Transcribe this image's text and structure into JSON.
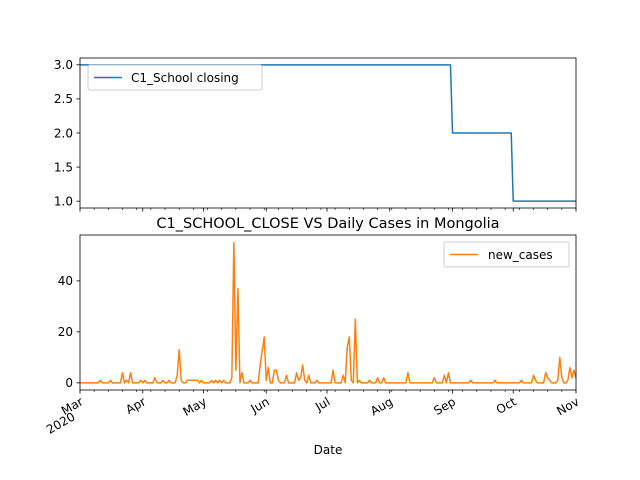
{
  "chart_data": [
    {
      "type": "line",
      "title": "",
      "xlabel": "",
      "ylabel": "",
      "xlim": [
        "2020-03-01",
        "2020-11-01"
      ],
      "ylim": [
        0.9,
        3.1
      ],
      "yticks": [
        "1.0",
        "1.5",
        "2.0",
        "2.5",
        "3.0"
      ],
      "grid": false,
      "legend": {
        "position": "upper-left"
      },
      "series": [
        {
          "name": "C1_School closing",
          "color": "#1f77b4",
          "step": true,
          "points": [
            [
              "2020-03-01",
              3.0
            ],
            [
              "2020-08-31",
              3.0
            ],
            [
              "2020-09-01",
              2.0
            ],
            [
              "2020-09-30",
              2.0
            ],
            [
              "2020-10-01",
              1.0
            ],
            [
              "2020-11-01",
              1.0
            ]
          ]
        }
      ]
    },
    {
      "type": "line",
      "title": "C1_SCHOOL_CLOSE VS Daily Cases in Mongolia",
      "xlabel": "Date",
      "ylabel": "",
      "xlim": [
        "2020-03-01",
        "2020-11-01"
      ],
      "ylim": [
        -2.8,
        58
      ],
      "yticks": [
        "0",
        "20",
        "40"
      ],
      "xticks": [
        {
          "date": "2020-03-01",
          "label": "Mar",
          "sublabel": "2020"
        },
        {
          "date": "2020-04-01",
          "label": "Apr"
        },
        {
          "date": "2020-05-01",
          "label": "May"
        },
        {
          "date": "2020-06-01",
          "label": "Jun"
        },
        {
          "date": "2020-07-01",
          "label": "Jul"
        },
        {
          "date": "2020-08-01",
          "label": "Aug"
        },
        {
          "date": "2020-09-01",
          "label": "Sep"
        },
        {
          "date": "2020-10-01",
          "label": "Oct"
        },
        {
          "date": "2020-11-01",
          "label": "Nov"
        }
      ],
      "grid": false,
      "legend": {
        "position": "upper-right"
      },
      "series": [
        {
          "name": "new_cases",
          "color": "#ff7f0e",
          "points": [
            [
              "2020-03-01",
              0
            ],
            [
              "2020-03-10",
              0
            ],
            [
              "2020-03-11",
              1
            ],
            [
              "2020-03-12",
              0
            ],
            [
              "2020-03-15",
              0
            ],
            [
              "2020-03-16",
              1
            ],
            [
              "2020-03-17",
              0
            ],
            [
              "2020-03-21",
              0
            ],
            [
              "2020-03-22",
              4
            ],
            [
              "2020-03-23",
              0
            ],
            [
              "2020-03-24",
              1
            ],
            [
              "2020-03-25",
              0
            ],
            [
              "2020-03-26",
              4
            ],
            [
              "2020-03-27",
              0
            ],
            [
              "2020-03-30",
              0
            ],
            [
              "2020-03-31",
              1
            ],
            [
              "2020-04-01",
              0
            ],
            [
              "2020-04-02",
              1
            ],
            [
              "2020-04-03",
              0
            ],
            [
              "2020-04-06",
              0
            ],
            [
              "2020-04-07",
              2
            ],
            [
              "2020-04-08",
              0
            ],
            [
              "2020-04-10",
              0
            ],
            [
              "2020-04-11",
              1
            ],
            [
              "2020-04-12",
              0
            ],
            [
              "2020-04-13",
              0
            ],
            [
              "2020-04-14",
              1
            ],
            [
              "2020-04-15",
              0
            ],
            [
              "2020-04-17",
              0
            ],
            [
              "2020-04-18",
              3
            ],
            [
              "2020-04-19",
              13
            ],
            [
              "2020-04-20",
              1
            ],
            [
              "2020-04-21",
              0
            ],
            [
              "2020-04-22",
              0
            ],
            [
              "2020-04-23",
              1
            ],
            [
              "2020-04-24",
              1
            ],
            [
              "2020-04-27",
              1
            ],
            [
              "2020-04-28",
              1
            ],
            [
              "2020-04-29",
              0
            ],
            [
              "2020-04-30",
              1
            ],
            [
              "2020-05-01",
              0
            ],
            [
              "2020-05-04",
              0
            ],
            [
              "2020-05-05",
              1
            ],
            [
              "2020-05-06",
              0
            ],
            [
              "2020-05-07",
              1
            ],
            [
              "2020-05-08",
              0
            ],
            [
              "2020-05-09",
              1
            ],
            [
              "2020-05-10",
              0
            ],
            [
              "2020-05-11",
              1
            ],
            [
              "2020-05-12",
              0
            ],
            [
              "2020-05-14",
              0
            ],
            [
              "2020-05-15",
              2
            ],
            [
              "2020-05-16",
              55
            ],
            [
              "2020-05-17",
              5
            ],
            [
              "2020-05-18",
              37
            ],
            [
              "2020-05-19",
              0
            ],
            [
              "2020-05-20",
              4
            ],
            [
              "2020-05-21",
              0
            ],
            [
              "2020-05-23",
              0
            ],
            [
              "2020-05-24",
              1
            ],
            [
              "2020-05-25",
              0
            ],
            [
              "2020-05-28",
              0
            ],
            [
              "2020-05-29",
              7
            ],
            [
              "2020-05-31",
              18
            ],
            [
              "2020-06-01",
              1
            ],
            [
              "2020-06-02",
              6
            ],
            [
              "2020-06-03",
              0
            ],
            [
              "2020-06-04",
              0
            ],
            [
              "2020-06-05",
              5
            ],
            [
              "2020-06-06",
              5
            ],
            [
              "2020-06-07",
              1
            ],
            [
              "2020-06-08",
              0
            ],
            [
              "2020-06-10",
              0
            ],
            [
              "2020-06-11",
              3
            ],
            [
              "2020-06-12",
              0
            ],
            [
              "2020-06-15",
              0
            ],
            [
              "2020-06-16",
              4
            ],
            [
              "2020-06-17",
              1
            ],
            [
              "2020-06-18",
              2
            ],
            [
              "2020-06-19",
              7
            ],
            [
              "2020-06-20",
              1
            ],
            [
              "2020-06-21",
              0
            ],
            [
              "2020-06-22",
              3
            ],
            [
              "2020-06-23",
              0
            ],
            [
              "2020-06-25",
              0
            ],
            [
              "2020-06-26",
              1
            ],
            [
              "2020-06-27",
              0
            ],
            [
              "2020-07-03",
              0
            ],
            [
              "2020-07-04",
              5
            ],
            [
              "2020-07-05",
              0
            ],
            [
              "2020-07-06",
              0
            ],
            [
              "2020-07-08",
              0
            ],
            [
              "2020-07-09",
              3
            ],
            [
              "2020-07-10",
              0
            ],
            [
              "2020-07-11",
              14
            ],
            [
              "2020-07-12",
              18
            ],
            [
              "2020-07-13",
              1
            ],
            [
              "2020-07-14",
              0
            ],
            [
              "2020-07-15",
              25
            ],
            [
              "2020-07-16",
              0
            ],
            [
              "2020-07-17",
              1
            ],
            [
              "2020-07-18",
              0
            ],
            [
              "2020-07-21",
              0
            ],
            [
              "2020-07-22",
              1
            ],
            [
              "2020-07-23",
              0
            ],
            [
              "2020-07-25",
              0
            ],
            [
              "2020-07-26",
              2
            ],
            [
              "2020-07-27",
              0
            ],
            [
              "2020-07-28",
              0
            ],
            [
              "2020-07-29",
              2
            ],
            [
              "2020-07-30",
              0
            ],
            [
              "2020-08-09",
              0
            ],
            [
              "2020-08-10",
              4
            ],
            [
              "2020-08-11",
              0
            ],
            [
              "2020-08-22",
              0
            ],
            [
              "2020-08-23",
              2
            ],
            [
              "2020-08-24",
              0
            ],
            [
              "2020-08-27",
              0
            ],
            [
              "2020-08-28",
              3
            ],
            [
              "2020-08-29",
              0
            ],
            [
              "2020-08-30",
              4
            ],
            [
              "2020-08-31",
              0
            ],
            [
              "2020-09-01",
              0
            ],
            [
              "2020-09-09",
              0
            ],
            [
              "2020-09-10",
              1
            ],
            [
              "2020-09-11",
              0
            ],
            [
              "2020-09-21",
              0
            ],
            [
              "2020-09-22",
              1
            ],
            [
              "2020-09-23",
              0
            ],
            [
              "2020-10-04",
              0
            ],
            [
              "2020-10-05",
              1
            ],
            [
              "2020-10-06",
              0
            ],
            [
              "2020-10-10",
              0
            ],
            [
              "2020-10-11",
              3
            ],
            [
              "2020-10-12",
              1
            ],
            [
              "2020-10-13",
              0
            ],
            [
              "2020-10-16",
              0
            ],
            [
              "2020-10-17",
              4
            ],
            [
              "2020-10-18",
              2
            ],
            [
              "2020-10-19",
              1
            ],
            [
              "2020-10-20",
              0
            ],
            [
              "2020-10-22",
              0
            ],
            [
              "2020-10-23",
              1
            ],
            [
              "2020-10-24",
              10
            ],
            [
              "2020-10-25",
              2
            ],
            [
              "2020-10-26",
              0
            ],
            [
              "2020-10-27",
              0
            ],
            [
              "2020-10-28",
              1
            ],
            [
              "2020-10-29",
              6
            ],
            [
              "2020-10-30",
              2
            ],
            [
              "2020-10-31",
              5
            ],
            [
              "2020-11-01",
              2
            ]
          ]
        }
      ]
    }
  ]
}
